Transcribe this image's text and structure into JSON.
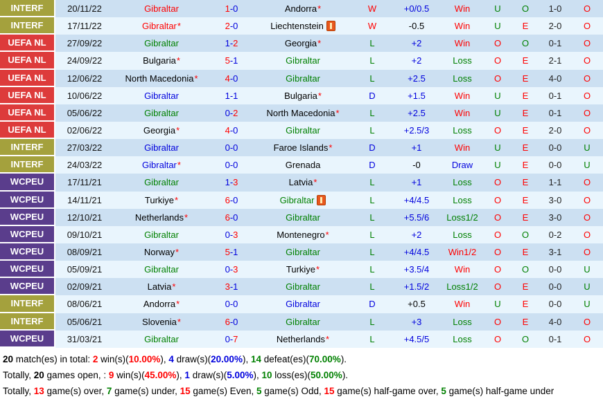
{
  "colors": {
    "red": "#ff0000",
    "green": "#008000",
    "blue": "#0000dd",
    "black": "#000000",
    "ht_score": "#222222",
    "comp_interf": "#a4a13d",
    "comp_uefanl": "#dd3b3b",
    "comp_wcpeu": "#5a3d8c",
    "row_dark": "#cce0f2",
    "row_light": "#e9f5fd"
  },
  "table": {
    "rows": [
      {
        "comp": "INTERF",
        "date": "20/11/22",
        "home": "Gibraltar",
        "home_color": "red",
        "home_star": false,
        "home_card": false,
        "score_home": "1",
        "score_home_color": "red",
        "score_away": "0",
        "score_away_color": "blue",
        "away": "Andorra",
        "away_color": "black",
        "away_star": true,
        "away_card": false,
        "result": "W",
        "result_color": "red",
        "handicap": "+0/0.5",
        "handicap_color": "blue",
        "bet": "Win",
        "bet_color": "red",
        "uo": "U",
        "uo_color": "green",
        "oe": "O",
        "oe_color": "green",
        "ht": "1-0",
        "ou": "O",
        "ou_color": "red"
      },
      {
        "comp": "INTERF",
        "date": "17/11/22",
        "home": "Gibraltar",
        "home_color": "red",
        "home_star": true,
        "home_card": false,
        "score_home": "2",
        "score_home_color": "red",
        "score_away": "0",
        "score_away_color": "blue",
        "away": "Liechtenstein",
        "away_color": "black",
        "away_star": false,
        "away_card": true,
        "result": "W",
        "result_color": "red",
        "handicap": "-0.5",
        "handicap_color": "black",
        "bet": "Win",
        "bet_color": "red",
        "uo": "U",
        "uo_color": "green",
        "oe": "E",
        "oe_color": "red",
        "ht": "2-0",
        "ou": "O",
        "ou_color": "red"
      },
      {
        "comp": "UEFA NL",
        "date": "27/09/22",
        "home": "Gibraltar",
        "home_color": "green",
        "home_star": false,
        "home_card": false,
        "score_home": "1",
        "score_home_color": "blue",
        "score_away": "2",
        "score_away_color": "red",
        "away": "Georgia",
        "away_color": "black",
        "away_star": true,
        "away_card": false,
        "result": "L",
        "result_color": "green",
        "handicap": "+2",
        "handicap_color": "blue",
        "bet": "Win",
        "bet_color": "red",
        "uo": "O",
        "uo_color": "red",
        "oe": "O",
        "oe_color": "green",
        "ht": "0-1",
        "ou": "O",
        "ou_color": "red"
      },
      {
        "comp": "UEFA NL",
        "date": "24/09/22",
        "home": "Bulgaria",
        "home_color": "black",
        "home_star": true,
        "home_card": false,
        "score_home": "5",
        "score_home_color": "red",
        "score_away": "1",
        "score_away_color": "blue",
        "away": "Gibraltar",
        "away_color": "green",
        "away_star": false,
        "away_card": false,
        "result": "L",
        "result_color": "green",
        "handicap": "+2",
        "handicap_color": "blue",
        "bet": "Loss",
        "bet_color": "green",
        "uo": "O",
        "uo_color": "red",
        "oe": "E",
        "oe_color": "red",
        "ht": "2-1",
        "ou": "O",
        "ou_color": "red"
      },
      {
        "comp": "UEFA NL",
        "date": "12/06/22",
        "home": "North Macedonia",
        "home_color": "black",
        "home_star": true,
        "home_card": false,
        "score_home": "4",
        "score_home_color": "red",
        "score_away": "0",
        "score_away_color": "blue",
        "away": "Gibraltar",
        "away_color": "green",
        "away_star": false,
        "away_card": false,
        "result": "L",
        "result_color": "green",
        "handicap": "+2.5",
        "handicap_color": "blue",
        "bet": "Loss",
        "bet_color": "green",
        "uo": "O",
        "uo_color": "red",
        "oe": "E",
        "oe_color": "red",
        "ht": "4-0",
        "ou": "O",
        "ou_color": "red"
      },
      {
        "comp": "UEFA NL",
        "date": "10/06/22",
        "home": "Gibraltar",
        "home_color": "blue",
        "home_star": false,
        "home_card": false,
        "score_home": "1",
        "score_home_color": "blue",
        "score_away": "1",
        "score_away_color": "blue",
        "away": "Bulgaria",
        "away_color": "black",
        "away_star": true,
        "away_card": false,
        "result": "D",
        "result_color": "blue",
        "handicap": "+1.5",
        "handicap_color": "blue",
        "bet": "Win",
        "bet_color": "red",
        "uo": "U",
        "uo_color": "green",
        "oe": "E",
        "oe_color": "red",
        "ht": "0-1",
        "ou": "O",
        "ou_color": "red"
      },
      {
        "comp": "UEFA NL",
        "date": "05/06/22",
        "home": "Gibraltar",
        "home_color": "green",
        "home_star": false,
        "home_card": false,
        "score_home": "0",
        "score_home_color": "blue",
        "score_away": "2",
        "score_away_color": "red",
        "away": "North Macedonia",
        "away_color": "black",
        "away_star": true,
        "away_card": false,
        "result": "L",
        "result_color": "green",
        "handicap": "+2.5",
        "handicap_color": "blue",
        "bet": "Win",
        "bet_color": "red",
        "uo": "U",
        "uo_color": "green",
        "oe": "E",
        "oe_color": "red",
        "ht": "0-1",
        "ou": "O",
        "ou_color": "red"
      },
      {
        "comp": "UEFA NL",
        "date": "02/06/22",
        "home": "Georgia",
        "home_color": "black",
        "home_star": true,
        "home_card": false,
        "score_home": "4",
        "score_home_color": "red",
        "score_away": "0",
        "score_away_color": "blue",
        "away": "Gibraltar",
        "away_color": "green",
        "away_star": false,
        "away_card": false,
        "result": "L",
        "result_color": "green",
        "handicap": "+2.5/3",
        "handicap_color": "blue",
        "bet": "Loss",
        "bet_color": "green",
        "uo": "O",
        "uo_color": "red",
        "oe": "E",
        "oe_color": "red",
        "ht": "2-0",
        "ou": "O",
        "ou_color": "red"
      },
      {
        "comp": "INTERF",
        "date": "27/03/22",
        "home": "Gibraltar",
        "home_color": "blue",
        "home_star": false,
        "home_card": false,
        "score_home": "0",
        "score_home_color": "blue",
        "score_away": "0",
        "score_away_color": "blue",
        "away": "Faroe Islands",
        "away_color": "black",
        "away_star": true,
        "away_card": false,
        "result": "D",
        "result_color": "blue",
        "handicap": "+1",
        "handicap_color": "blue",
        "bet": "Win",
        "bet_color": "red",
        "uo": "U",
        "uo_color": "green",
        "oe": "E",
        "oe_color": "red",
        "ht": "0-0",
        "ou": "U",
        "ou_color": "green"
      },
      {
        "comp": "INTERF",
        "date": "24/03/22",
        "home": "Gibraltar",
        "home_color": "blue",
        "home_star": true,
        "home_card": false,
        "score_home": "0",
        "score_home_color": "blue",
        "score_away": "0",
        "score_away_color": "blue",
        "away": "Grenada",
        "away_color": "black",
        "away_star": false,
        "away_card": false,
        "result": "D",
        "result_color": "blue",
        "handicap": "-0",
        "handicap_color": "black",
        "bet": "Draw",
        "bet_color": "blue",
        "uo": "U",
        "uo_color": "green",
        "oe": "E",
        "oe_color": "red",
        "ht": "0-0",
        "ou": "U",
        "ou_color": "green"
      },
      {
        "comp": "WCPEU",
        "date": "17/11/21",
        "home": "Gibraltar",
        "home_color": "green",
        "home_star": false,
        "home_card": false,
        "score_home": "1",
        "score_home_color": "blue",
        "score_away": "3",
        "score_away_color": "red",
        "away": "Latvia",
        "away_color": "black",
        "away_star": true,
        "away_card": false,
        "result": "L",
        "result_color": "green",
        "handicap": "+1",
        "handicap_color": "blue",
        "bet": "Loss",
        "bet_color": "green",
        "uo": "O",
        "uo_color": "red",
        "oe": "E",
        "oe_color": "red",
        "ht": "1-1",
        "ou": "O",
        "ou_color": "red"
      },
      {
        "comp": "WCPEU",
        "date": "14/11/21",
        "home": "Turkiye",
        "home_color": "black",
        "home_star": true,
        "home_card": false,
        "score_home": "6",
        "score_home_color": "red",
        "score_away": "0",
        "score_away_color": "blue",
        "away": "Gibraltar",
        "away_color": "green",
        "away_star": false,
        "away_card": true,
        "result": "L",
        "result_color": "green",
        "handicap": "+4/4.5",
        "handicap_color": "blue",
        "bet": "Loss",
        "bet_color": "green",
        "uo": "O",
        "uo_color": "red",
        "oe": "E",
        "oe_color": "red",
        "ht": "3-0",
        "ou": "O",
        "ou_color": "red"
      },
      {
        "comp": "WCPEU",
        "date": "12/10/21",
        "home": "Netherlands",
        "home_color": "black",
        "home_star": true,
        "home_card": false,
        "score_home": "6",
        "score_home_color": "red",
        "score_away": "0",
        "score_away_color": "blue",
        "away": "Gibraltar",
        "away_color": "green",
        "away_star": false,
        "away_card": false,
        "result": "L",
        "result_color": "green",
        "handicap": "+5.5/6",
        "handicap_color": "blue",
        "bet": "Loss1/2",
        "bet_color": "green",
        "uo": "O",
        "uo_color": "red",
        "oe": "E",
        "oe_color": "red",
        "ht": "3-0",
        "ou": "O",
        "ou_color": "red"
      },
      {
        "comp": "WCPEU",
        "date": "09/10/21",
        "home": "Gibraltar",
        "home_color": "green",
        "home_star": false,
        "home_card": false,
        "score_home": "0",
        "score_home_color": "blue",
        "score_away": "3",
        "score_away_color": "red",
        "away": "Montenegro",
        "away_color": "black",
        "away_star": true,
        "away_card": false,
        "result": "L",
        "result_color": "green",
        "handicap": "+2",
        "handicap_color": "blue",
        "bet": "Loss",
        "bet_color": "green",
        "uo": "O",
        "uo_color": "red",
        "oe": "O",
        "oe_color": "green",
        "ht": "0-2",
        "ou": "O",
        "ou_color": "red"
      },
      {
        "comp": "WCPEU",
        "date": "08/09/21",
        "home": "Norway",
        "home_color": "black",
        "home_star": true,
        "home_card": false,
        "score_home": "5",
        "score_home_color": "red",
        "score_away": "1",
        "score_away_color": "blue",
        "away": "Gibraltar",
        "away_color": "green",
        "away_star": false,
        "away_card": false,
        "result": "L",
        "result_color": "green",
        "handicap": "+4/4.5",
        "handicap_color": "blue",
        "bet": "Win1/2",
        "bet_color": "red",
        "uo": "O",
        "uo_color": "red",
        "oe": "E",
        "oe_color": "red",
        "ht": "3-1",
        "ou": "O",
        "ou_color": "red"
      },
      {
        "comp": "WCPEU",
        "date": "05/09/21",
        "home": "Gibraltar",
        "home_color": "green",
        "home_star": false,
        "home_card": false,
        "score_home": "0",
        "score_home_color": "blue",
        "score_away": "3",
        "score_away_color": "red",
        "away": "Turkiye",
        "away_color": "black",
        "away_star": true,
        "away_card": false,
        "result": "L",
        "result_color": "green",
        "handicap": "+3.5/4",
        "handicap_color": "blue",
        "bet": "Win",
        "bet_color": "red",
        "uo": "O",
        "uo_color": "red",
        "oe": "O",
        "oe_color": "green",
        "ht": "0-0",
        "ou": "U",
        "ou_color": "green"
      },
      {
        "comp": "WCPEU",
        "date": "02/09/21",
        "home": "Latvia",
        "home_color": "black",
        "home_star": true,
        "home_card": false,
        "score_home": "3",
        "score_home_color": "red",
        "score_away": "1",
        "score_away_color": "blue",
        "away": "Gibraltar",
        "away_color": "green",
        "away_star": false,
        "away_card": false,
        "result": "L",
        "result_color": "green",
        "handicap": "+1.5/2",
        "handicap_color": "blue",
        "bet": "Loss1/2",
        "bet_color": "green",
        "uo": "O",
        "uo_color": "red",
        "oe": "E",
        "oe_color": "red",
        "ht": "0-0",
        "ou": "U",
        "ou_color": "green"
      },
      {
        "comp": "INTERF",
        "date": "08/06/21",
        "home": "Andorra",
        "home_color": "black",
        "home_star": true,
        "home_card": false,
        "score_home": "0",
        "score_home_color": "blue",
        "score_away": "0",
        "score_away_color": "blue",
        "away": "Gibraltar",
        "away_color": "blue",
        "away_star": false,
        "away_card": false,
        "result": "D",
        "result_color": "blue",
        "handicap": "+0.5",
        "handicap_color": "black",
        "bet": "Win",
        "bet_color": "red",
        "uo": "U",
        "uo_color": "green",
        "oe": "E",
        "oe_color": "red",
        "ht": "0-0",
        "ou": "U",
        "ou_color": "green"
      },
      {
        "comp": "INTERF",
        "date": "05/06/21",
        "home": "Slovenia",
        "home_color": "black",
        "home_star": true,
        "home_card": false,
        "score_home": "6",
        "score_home_color": "red",
        "score_away": "0",
        "score_away_color": "blue",
        "away": "Gibraltar",
        "away_color": "green",
        "away_star": false,
        "away_card": false,
        "result": "L",
        "result_color": "green",
        "handicap": "+3",
        "handicap_color": "blue",
        "bet": "Loss",
        "bet_color": "green",
        "uo": "O",
        "uo_color": "red",
        "oe": "E",
        "oe_color": "red",
        "ht": "4-0",
        "ou": "O",
        "ou_color": "red"
      },
      {
        "comp": "WCPEU",
        "date": "31/03/21",
        "home": "Gibraltar",
        "home_color": "green",
        "home_star": false,
        "home_card": false,
        "score_home": "0",
        "score_home_color": "blue",
        "score_away": "7",
        "score_away_color": "red",
        "away": "Netherlands",
        "away_color": "black",
        "away_star": true,
        "away_card": false,
        "result": "L",
        "result_color": "green",
        "handicap": "+4.5/5",
        "handicap_color": "blue",
        "bet": "Loss",
        "bet_color": "green",
        "uo": "O",
        "uo_color": "red",
        "oe": "O",
        "oe_color": "green",
        "ht": "0-1",
        "ou": "O",
        "ou_color": "red"
      }
    ]
  },
  "summary": {
    "lines": [
      [
        {
          "t": "20",
          "c": "black",
          "b": true
        },
        {
          "t": " match(es) in total: ",
          "c": "black"
        },
        {
          "t": "2",
          "c": "red",
          "b": true
        },
        {
          "t": " win(s)(",
          "c": "black"
        },
        {
          "t": "10.00%",
          "c": "red",
          "b": true
        },
        {
          "t": "), ",
          "c": "black"
        },
        {
          "t": "4",
          "c": "blue",
          "b": true
        },
        {
          "t": " draw(s)(",
          "c": "black"
        },
        {
          "t": "20.00%",
          "c": "blue",
          "b": true
        },
        {
          "t": "), ",
          "c": "black"
        },
        {
          "t": "14",
          "c": "green",
          "b": true
        },
        {
          "t": " defeat(es)(",
          "c": "black"
        },
        {
          "t": "70.00%",
          "c": "green",
          "b": true
        },
        {
          "t": ").",
          "c": "black"
        }
      ],
      [
        {
          "t": "Totally, ",
          "c": "black"
        },
        {
          "t": "20",
          "c": "black",
          "b": true
        },
        {
          "t": " games open, : ",
          "c": "black"
        },
        {
          "t": "9",
          "c": "red",
          "b": true
        },
        {
          "t": " win(s)(",
          "c": "black"
        },
        {
          "t": "45.00%",
          "c": "red",
          "b": true
        },
        {
          "t": "), ",
          "c": "black"
        },
        {
          "t": "1",
          "c": "blue",
          "b": true
        },
        {
          "t": " draw(s)(",
          "c": "black"
        },
        {
          "t": "5.00%",
          "c": "blue",
          "b": true
        },
        {
          "t": "), ",
          "c": "black"
        },
        {
          "t": "10",
          "c": "green",
          "b": true
        },
        {
          "t": " loss(es)(",
          "c": "black"
        },
        {
          "t": "50.00%",
          "c": "green",
          "b": true
        },
        {
          "t": ").",
          "c": "black"
        }
      ],
      [
        {
          "t": "Totally, ",
          "c": "black"
        },
        {
          "t": "13",
          "c": "red",
          "b": true
        },
        {
          "t": " game(s) over, ",
          "c": "black"
        },
        {
          "t": "7",
          "c": "green",
          "b": true
        },
        {
          "t": " game(s) under, ",
          "c": "black"
        },
        {
          "t": "15",
          "c": "red",
          "b": true
        },
        {
          "t": " game(s) Even, ",
          "c": "black"
        },
        {
          "t": "5",
          "c": "green",
          "b": true
        },
        {
          "t": " game(s) Odd, ",
          "c": "black"
        },
        {
          "t": "15",
          "c": "red",
          "b": true
        },
        {
          "t": " game(s) half-game over, ",
          "c": "black"
        },
        {
          "t": "5",
          "c": "green",
          "b": true
        },
        {
          "t": " game(s) half-game under",
          "c": "black"
        }
      ]
    ]
  }
}
